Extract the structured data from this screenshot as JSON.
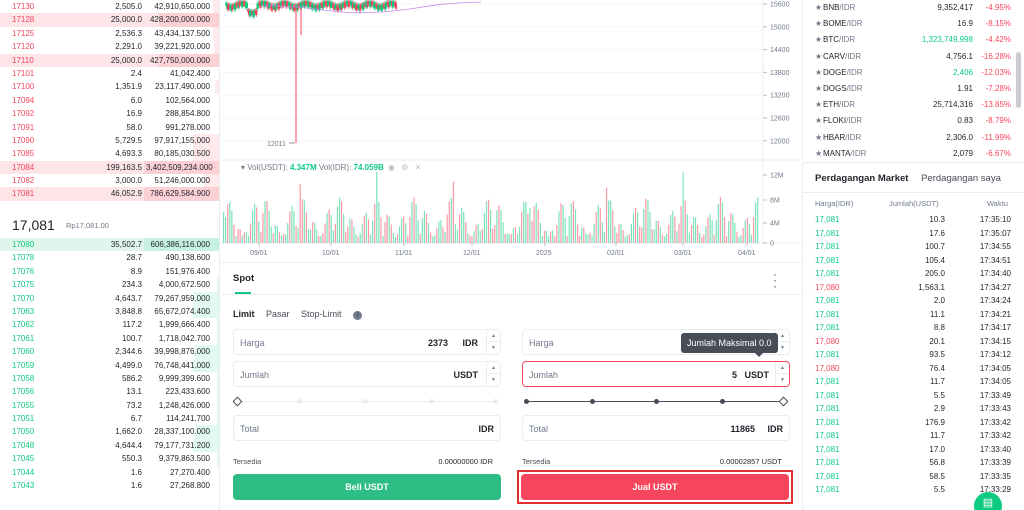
{
  "orderbook": {
    "asks": [
      {
        "price": "17130",
        "amount": "2,505.0",
        "total": "42,910,650.000",
        "depth": 0.08,
        "highlight": false
      },
      {
        "price": "17128",
        "amount": "25,000.0",
        "total": "428,200,000.000",
        "depth": 0.8,
        "highlight": true
      },
      {
        "price": "17125",
        "amount": "2,536.3",
        "total": "43,434,137.500",
        "depth": 0.08,
        "highlight": false
      },
      {
        "price": "17120",
        "amount": "2,291.0",
        "total": "39,221,920.000",
        "depth": 0.07,
        "highlight": false
      },
      {
        "price": "17110",
        "amount": "25,000.0",
        "total": "427,750,000.000",
        "depth": 0.8,
        "highlight": true
      },
      {
        "price": "17101",
        "amount": "2.4",
        "total": "41,042.400",
        "depth": 0.0,
        "highlight": false
      },
      {
        "price": "17100",
        "amount": "1,351.9",
        "total": "23,117,490.000",
        "depth": 0.05,
        "highlight": false
      },
      {
        "price": "17094",
        "amount": "6.0",
        "total": "102,564.000",
        "depth": 0.0,
        "highlight": false
      },
      {
        "price": "17092",
        "amount": "16.9",
        "total": "288,854.800",
        "depth": 0.0,
        "highlight": false
      },
      {
        "price": "17091",
        "amount": "58.0",
        "total": "991,278.000",
        "depth": 0.0,
        "highlight": false
      },
      {
        "price": "17090",
        "amount": "5,729.5",
        "total": "97,917,155.000",
        "depth": 0.35,
        "highlight": false
      },
      {
        "price": "17085",
        "amount": "4,693.3",
        "total": "80,185,030.500",
        "depth": 0.35,
        "highlight": false
      },
      {
        "price": "17084",
        "amount": "199,163.5",
        "total": "3,402,509,234.000",
        "depth": 1.0,
        "highlight": true
      },
      {
        "price": "17082",
        "amount": "3,000.0",
        "total": "51,246,000.000",
        "depth": 0.2,
        "highlight": false
      },
      {
        "price": "17081",
        "amount": "46,052.9",
        "total": "786,629,584.900",
        "depth": 1.0,
        "highlight": true
      }
    ],
    "last_price": "17,081",
    "last_price_sub": "Rp17,081.00",
    "bids": [
      {
        "price": "17080",
        "amount": "35,502.7",
        "total": "606,386,116.000",
        "depth": 1.0,
        "highlight": true
      },
      {
        "price": "17078",
        "amount": "28.7",
        "total": "490,138.600",
        "depth": 0.0,
        "highlight": false
      },
      {
        "price": "17076",
        "amount": "8.9",
        "total": "151,976.400",
        "depth": 0.0,
        "highlight": false
      },
      {
        "price": "17075",
        "amount": "234.3",
        "total": "4,000,672.500",
        "depth": 0.03,
        "highlight": false
      },
      {
        "price": "17070",
        "amount": "4,643.7",
        "total": "79,267,959.000",
        "depth": 0.35,
        "highlight": false
      },
      {
        "price": "17063",
        "amount": "3,848.8",
        "total": "65,672,074.400",
        "depth": 0.35,
        "highlight": false
      },
      {
        "price": "17062",
        "amount": "117.2",
        "total": "1,999,666.400",
        "depth": 0.03,
        "highlight": false
      },
      {
        "price": "17061",
        "amount": "100.7",
        "total": "1,718,042.700",
        "depth": 0.03,
        "highlight": false
      },
      {
        "price": "17060",
        "amount": "2,344.6",
        "total": "39,998,876.000",
        "depth": 0.32,
        "highlight": false
      },
      {
        "price": "17059",
        "amount": "4,499.0",
        "total": "76,748,441.000",
        "depth": 0.35,
        "highlight": false
      },
      {
        "price": "17058",
        "amount": "586.2",
        "total": "9,999,399.600",
        "depth": 0.03,
        "highlight": false
      },
      {
        "price": "17056",
        "amount": "13.1",
        "total": "223,433.600",
        "depth": 0.03,
        "highlight": false
      },
      {
        "price": "17055",
        "amount": "73.2",
        "total": "1,248,426.000",
        "depth": 0.03,
        "highlight": false
      },
      {
        "price": "17051",
        "amount": "6.7",
        "total": "114,241.700",
        "depth": 0.03,
        "highlight": false
      },
      {
        "price": "17050",
        "amount": "1,662.0",
        "total": "28,337,100.000",
        "depth": 0.32,
        "highlight": false
      },
      {
        "price": "17048",
        "amount": "4,644.4",
        "total": "79,177,731.200",
        "depth": 0.35,
        "highlight": false
      },
      {
        "price": "17045",
        "amount": "550.3",
        "total": "9,379,863.500",
        "depth": 0.03,
        "highlight": false
      },
      {
        "price": "17044",
        "amount": "1.6",
        "total": "27,270.400",
        "depth": 0.0,
        "highlight": false
      },
      {
        "price": "17043",
        "amount": "1.6",
        "total": "27,268.800",
        "depth": 0.0,
        "highlight": false
      }
    ]
  },
  "chart": {
    "price_ticks": [
      "15600",
      "15000",
      "14400",
      "13800",
      "13200",
      "12600",
      "12000"
    ],
    "low_label": "12011",
    "vol_legend": {
      "usdt_label": "Vol(USDT):",
      "usdt_value": "4.347M",
      "idr_label": "Vol(IDR):",
      "idr_value": "74.059B"
    },
    "vol_ticks": [
      "12M",
      "8M",
      "4M",
      "0"
    ],
    "x_ticks": [
      "09/01",
      "10/01",
      "11/01",
      "12/01",
      "2025",
      "02/01",
      "03/01",
      "04/01"
    ],
    "colors": {
      "up": "#0ecb81",
      "down": "#f6465d"
    }
  },
  "spot": {
    "tab": "Spot",
    "order_types": [
      "Limit",
      "Pasar",
      "Stop-Limit"
    ],
    "buy": {
      "price_label": "Harga",
      "price_value": "2373",
      "price_unit": "IDR",
      "amount_label": "Jumlah",
      "amount_value": "",
      "amount_unit": "USDT",
      "total_label": "Total",
      "total_value": "",
      "total_unit": "IDR",
      "avail_label": "Tersedia",
      "avail_value": "0.00000000 IDR",
      "button": "Beli USDT"
    },
    "sell": {
      "price_label": "Harga",
      "amount_label": "Jumlah",
      "amount_value": "5",
      "amount_unit": "USDT",
      "total_label": "Total",
      "total_value": "11865",
      "total_unit": "IDR",
      "avail_label": "Tersedia",
      "avail_value": "0.00002857 USDT",
      "button": "Jual USDT",
      "tooltip": "Jumlah Maksimal 0.0"
    }
  },
  "market": {
    "rows": [
      {
        "base": "BNB",
        "quote": "/IDR",
        "price": "9,352,417",
        "change": "-4.95%",
        "price_color": "neutral"
      },
      {
        "base": "BOME",
        "quote": "/IDR",
        "price": "16.9",
        "change": "-8.15%",
        "price_color": "neutral"
      },
      {
        "base": "BTC",
        "quote": "/IDR",
        "price": "1,323,749,998",
        "change": "-4.42%",
        "price_color": "up"
      },
      {
        "base": "CARV",
        "quote": "/IDR",
        "price": "4,756.1",
        "change": "-16.28%",
        "price_color": "neutral"
      },
      {
        "base": "DOGE",
        "quote": "/IDR",
        "price": "2,406",
        "change": "-12.03%",
        "price_color": "up"
      },
      {
        "base": "DOGS",
        "quote": "/IDR",
        "price": "1.91",
        "change": "-7.28%",
        "price_color": "neutral"
      },
      {
        "base": "ETH",
        "quote": "/IDR",
        "price": "25,714,316",
        "change": "-13.85%",
        "price_color": "neutral"
      },
      {
        "base": "FLOKI",
        "quote": "/IDR",
        "price": "0.83",
        "change": "-8.79%",
        "price_color": "neutral"
      },
      {
        "base": "HBAR",
        "quote": "/IDR",
        "price": "2,306.0",
        "change": "-11.99%",
        "price_color": "neutral"
      },
      {
        "base": "MANTA",
        "quote": "/IDR",
        "price": "2,079",
        "change": "-6.67%",
        "price_color": "neutral"
      }
    ]
  },
  "trades": {
    "tab_active": "Perdagangan Market",
    "tab_other": "Perdagangan saya",
    "headers": {
      "price": "Harga(IDR)",
      "amount": "Jumlah(USDT)",
      "time": "Waktu"
    },
    "rows": [
      {
        "price": "17,081",
        "amount": "10.3",
        "time": "17:35:10",
        "dir": "up"
      },
      {
        "price": "17,081",
        "amount": "17.6",
        "time": "17:35:07",
        "dir": "up"
      },
      {
        "price": "17,081",
        "amount": "100.7",
        "time": "17:34:55",
        "dir": "up"
      },
      {
        "price": "17,081",
        "amount": "105.4",
        "time": "17:34:51",
        "dir": "up"
      },
      {
        "price": "17,081",
        "amount": "205.0",
        "time": "17:34:40",
        "dir": "up"
      },
      {
        "price": "17,080",
        "amount": "1,563.1",
        "time": "17:34:27",
        "dir": "down"
      },
      {
        "price": "17,081",
        "amount": "2.0",
        "time": "17:34:24",
        "dir": "up"
      },
      {
        "price": "17,081",
        "amount": "11.1",
        "time": "17:34:21",
        "dir": "up"
      },
      {
        "price": "17,081",
        "amount": "8.8",
        "time": "17:34:17",
        "dir": "up"
      },
      {
        "price": "17,080",
        "amount": "20.1",
        "time": "17:34:15",
        "dir": "down"
      },
      {
        "price": "17,081",
        "amount": "93.5",
        "time": "17:34:12",
        "dir": "up"
      },
      {
        "price": "17,080",
        "amount": "76.4",
        "time": "17:34:05",
        "dir": "down"
      },
      {
        "price": "17,081",
        "amount": "11.7",
        "time": "17:34:05",
        "dir": "up"
      },
      {
        "price": "17,081",
        "amount": "5.5",
        "time": "17:33:49",
        "dir": "up"
      },
      {
        "price": "17,081",
        "amount": "2.9",
        "time": "17:33:43",
        "dir": "up"
      },
      {
        "price": "17,081",
        "amount": "176.9",
        "time": "17:33:42",
        "dir": "up"
      },
      {
        "price": "17,081",
        "amount": "11.7",
        "time": "17:33:42",
        "dir": "up"
      },
      {
        "price": "17,081",
        "amount": "17.0",
        "time": "17:33:40",
        "dir": "up"
      },
      {
        "price": "17,081",
        "amount": "56.8",
        "time": "17:33:39",
        "dir": "up"
      },
      {
        "price": "17,081",
        "amount": "58.5",
        "time": "17:33:35",
        "dir": "up"
      },
      {
        "price": "17,081",
        "amount": "5.5",
        "time": "17:33:29",
        "dir": "up"
      }
    ]
  }
}
